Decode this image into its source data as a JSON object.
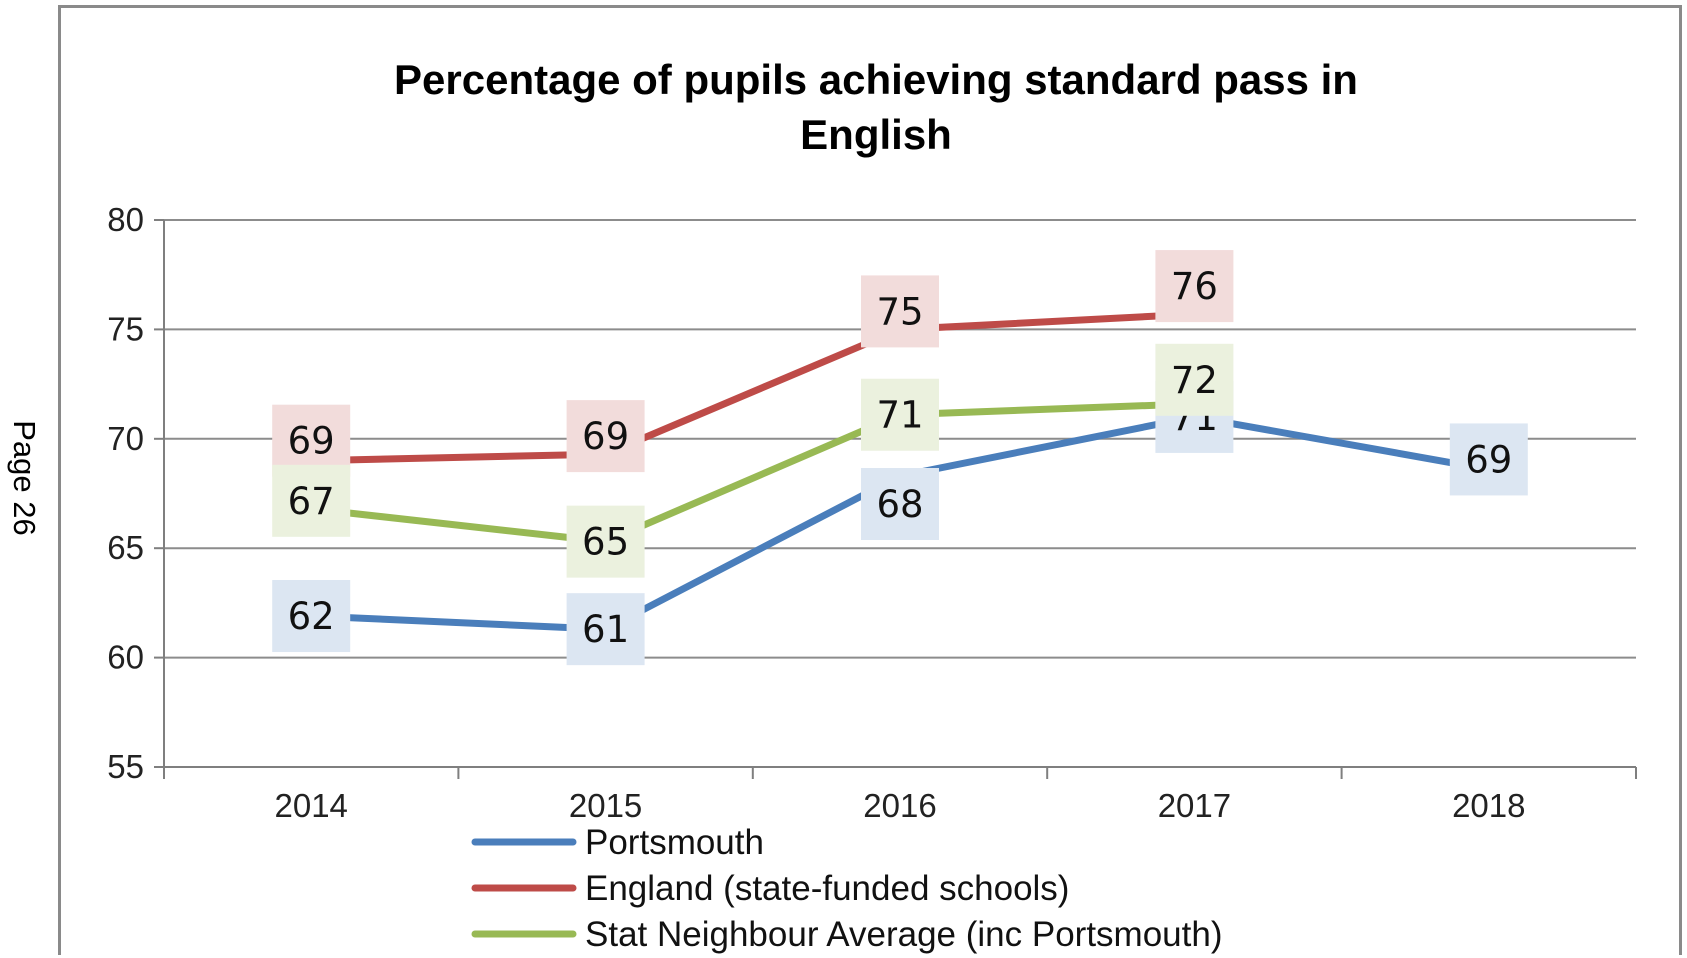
{
  "page_label": "Page 26",
  "chart_data": {
    "type": "line",
    "title": "Percentage of pupils achieving standard pass in English",
    "title_lines": [
      "Percentage of pupils achieving standard pass in",
      "English"
    ],
    "categories": [
      "2014",
      "2015",
      "2016",
      "2017",
      "2018"
    ],
    "ylim": [
      55,
      80
    ],
    "yticks": [
      55,
      60,
      65,
      70,
      75,
      80
    ],
    "grid": true,
    "legend_position": "bottom",
    "series": [
      {
        "name": "Portsmouth",
        "color": "#4a7ebb",
        "label_bg": "#dce6f2",
        "values": [
          61.9,
          61.3,
          68.3,
          71.0,
          68.6
        ],
        "labels": [
          "62",
          "61",
          "68",
          "71",
          "69"
        ]
      },
      {
        "name": "England (state-funded schools)",
        "color": "#be4b48",
        "label_bg": "#f2dcdb",
        "values": [
          69.0,
          69.3,
          75.0,
          75.7,
          null
        ],
        "labels": [
          "69",
          "69",
          "75",
          "76",
          null
        ]
      },
      {
        "name": "Stat Neighbour Average (inc Portsmouth)",
        "color": "#98b954",
        "label_bg": "#ebf1de",
        "values": [
          66.8,
          65.3,
          71.1,
          71.6,
          null
        ],
        "labels": [
          "67",
          "65",
          "71",
          "72",
          null
        ]
      }
    ]
  }
}
